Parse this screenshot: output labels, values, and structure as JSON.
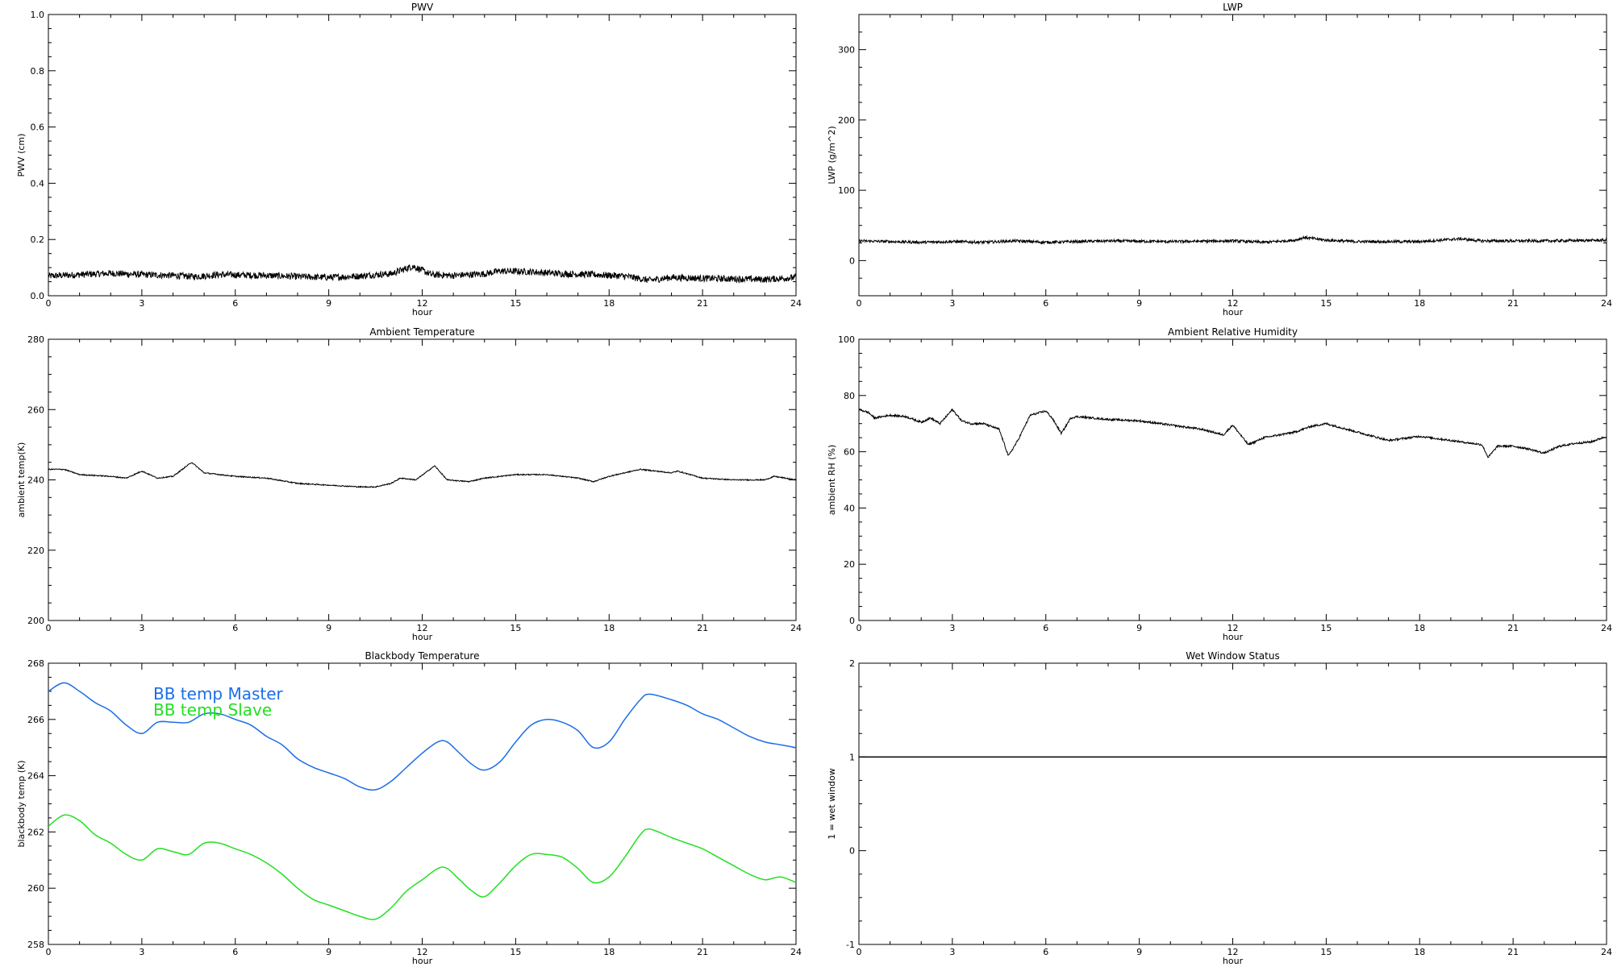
{
  "chart_data": [
    {
      "id": "pwv",
      "type": "line",
      "title": "PWV",
      "xlabel": "hour",
      "ylabel": "PWV (cm)",
      "xlim": [
        0,
        24
      ],
      "ylim": [
        0,
        1.0
      ],
      "xticks": [
        0,
        3,
        6,
        9,
        12,
        15,
        18,
        21,
        24
      ],
      "xtick_labels": [
        "0",
        "3",
        "6",
        "9",
        "12",
        "15",
        "18",
        "21",
        "24"
      ],
      "yticks": [
        0,
        0.2,
        0.4,
        0.6,
        0.8,
        1.0
      ],
      "ytick_labels": [
        "0.0",
        "0.2",
        "0.4",
        "0.6",
        "0.8",
        "1.0"
      ],
      "noise": 0.012,
      "series": [
        {
          "color": "#000000",
          "x": [
            0,
            1,
            2,
            3,
            4,
            4.7,
            5.5,
            7,
            8,
            9,
            10,
            10.5,
            11,
            11.7,
            12.3,
            13,
            14,
            14.5,
            15.5,
            16.5,
            17.5,
            18.5,
            19.3,
            20,
            21,
            22,
            23,
            24
          ],
          "y": [
            0.07,
            0.075,
            0.08,
            0.075,
            0.072,
            0.068,
            0.075,
            0.072,
            0.068,
            0.065,
            0.07,
            0.075,
            0.078,
            0.105,
            0.075,
            0.072,
            0.078,
            0.088,
            0.085,
            0.078,
            0.075,
            0.07,
            0.055,
            0.065,
            0.062,
            0.06,
            0.058,
            0.065
          ]
        }
      ]
    },
    {
      "id": "lwp",
      "type": "line",
      "title": "LWP",
      "xlabel": "hour",
      "ylabel": "LWP (g/m^2)",
      "xlim": [
        0,
        24
      ],
      "ylim": [
        -50,
        350
      ],
      "xticks": [
        0,
        3,
        6,
        9,
        12,
        15,
        18,
        21,
        24
      ],
      "xtick_labels": [
        "0",
        "3",
        "6",
        "9",
        "12",
        "15",
        "18",
        "21",
        "24"
      ],
      "yticks": [
        0,
        100,
        200,
        300
      ],
      "ytick_labels": [
        "0",
        "100",
        "200",
        "300"
      ],
      "noise": 2.0,
      "series": [
        {
          "color": "#000000",
          "x": [
            0,
            1,
            2,
            3,
            4,
            5,
            6,
            8,
            10,
            12,
            13,
            14,
            14.3,
            15,
            16,
            18,
            19.3,
            20,
            22,
            24
          ],
          "y": [
            28,
            27,
            26,
            27,
            26,
            28,
            26,
            28,
            27,
            28,
            26,
            29,
            33,
            29,
            27,
            27,
            31,
            28,
            28,
            29
          ]
        }
      ]
    },
    {
      "id": "ambient-temp",
      "type": "line",
      "title": "Ambient Temperature",
      "xlabel": "hour",
      "ylabel": "ambient temp(K)",
      "xlim": [
        0,
        24
      ],
      "ylim": [
        200,
        280
      ],
      "xticks": [
        0,
        3,
        6,
        9,
        12,
        15,
        18,
        21,
        24
      ],
      "xtick_labels": [
        "0",
        "3",
        "6",
        "9",
        "12",
        "15",
        "18",
        "21",
        "24"
      ],
      "yticks": [
        200,
        220,
        240,
        260,
        280
      ],
      "ytick_labels": [
        "200",
        "220",
        "240",
        "260",
        "280"
      ],
      "noise": 0.15,
      "series": [
        {
          "color": "#000000",
          "x": [
            0,
            0.5,
            1,
            2,
            2.5,
            3,
            3.5,
            4,
            4.6,
            5,
            6,
            7,
            8,
            9,
            10,
            10.5,
            11,
            11.3,
            11.8,
            12.4,
            12.8,
            13.5,
            14,
            15,
            16,
            17,
            17.5,
            18,
            19,
            20,
            20.2,
            21,
            22,
            23,
            23.3,
            24
          ],
          "y": [
            243,
            243,
            241.5,
            241,
            240.5,
            242.5,
            240.5,
            241,
            245,
            242,
            241,
            240.5,
            239,
            238.5,
            238,
            238,
            239,
            240.5,
            240,
            244,
            240,
            239.5,
            240.5,
            241.5,
            241.5,
            240.5,
            239.5,
            241,
            243,
            242,
            242.5,
            240.5,
            240,
            240,
            241,
            240
          ]
        }
      ]
    },
    {
      "id": "ambient-rh",
      "type": "line",
      "title": "Ambient Relative Humidity",
      "xlabel": "hour",
      "ylabel": "ambient RH (%)",
      "xlim": [
        0,
        24
      ],
      "ylim": [
        0,
        100
      ],
      "xticks": [
        0,
        3,
        6,
        9,
        12,
        15,
        18,
        21,
        24
      ],
      "xtick_labels": [
        "0",
        "3",
        "6",
        "9",
        "12",
        "15",
        "18",
        "21",
        "24"
      ],
      "yticks": [
        0,
        20,
        40,
        60,
        80,
        100
      ],
      "ytick_labels": [
        "0",
        "20",
        "40",
        "60",
        "80",
        "100"
      ],
      "noise": 0.35,
      "series": [
        {
          "color": "#000000",
          "x": [
            0,
            0.3,
            0.5,
            1,
            1.5,
            2,
            2.3,
            2.6,
            3,
            3.3,
            3.6,
            4,
            4.5,
            4.8,
            5.1,
            5.5,
            6,
            6.2,
            6.5,
            6.8,
            7,
            8,
            9,
            10,
            11,
            11.7,
            12,
            12.5,
            12.8,
            13,
            13.5,
            14,
            14.5,
            15,
            16,
            17,
            18,
            19,
            20,
            20.2,
            20.5,
            21,
            21.5,
            22,
            22.5,
            23,
            23.5,
            24
          ],
          "y": [
            75,
            74,
            72,
            73,
            72.5,
            70.5,
            72,
            70,
            75,
            71,
            70,
            70,
            68,
            58.5,
            64,
            73,
            74.5,
            72,
            66.5,
            72,
            72.5,
            71.5,
            71,
            69.5,
            68,
            66,
            69.5,
            62.5,
            64,
            65,
            66,
            67,
            69,
            70,
            67,
            64,
            65.5,
            64,
            62.5,
            58,
            62,
            62,
            61,
            59.5,
            62,
            63,
            63.5,
            65.5
          ]
        }
      ]
    },
    {
      "id": "blackbody-temp",
      "type": "line",
      "title": "Blackbody Temperature",
      "xlabel": "hour",
      "ylabel": "blackbody temp (K)",
      "xlim": [
        0,
        24
      ],
      "ylim": [
        258,
        268
      ],
      "xticks": [
        0,
        3,
        6,
        9,
        12,
        15,
        18,
        21,
        24
      ],
      "xtick_labels": [
        "0",
        "3",
        "6",
        "9",
        "12",
        "15",
        "18",
        "21",
        "24"
      ],
      "yticks": [
        258,
        260,
        262,
        264,
        266,
        268
      ],
      "ytick_labels": [
        "258",
        "260",
        "262",
        "264",
        "266",
        "268"
      ],
      "noise": 0.0,
      "legend": {
        "placement": "top-left",
        "entries": [
          "BB temp Master",
          "BB temp Slave"
        ]
      },
      "series": [
        {
          "name": "BB temp Master",
          "color": "#1a6ee6",
          "x": [
            0,
            0.5,
            1,
            1.5,
            2,
            2.5,
            3,
            3.5,
            4,
            4.5,
            5,
            5.5,
            6,
            6.5,
            7,
            7.5,
            8,
            8.5,
            9,
            9.5,
            10,
            10.5,
            11,
            11.5,
            12,
            12.5,
            12.8,
            13.2,
            13.6,
            14,
            14.5,
            15,
            15.5,
            16,
            16.5,
            17,
            17.5,
            18,
            18.5,
            19,
            19.3,
            20,
            20.5,
            21,
            21.5,
            22,
            22.5,
            23,
            23.5,
            24
          ],
          "y": [
            267.0,
            267.3,
            267.0,
            266.6,
            266.3,
            265.8,
            265.5,
            265.9,
            265.9,
            265.9,
            266.2,
            266.2,
            266.0,
            265.8,
            265.4,
            265.1,
            264.6,
            264.3,
            264.1,
            263.9,
            263.6,
            263.5,
            263.8,
            264.3,
            264.8,
            265.2,
            265.2,
            264.8,
            264.4,
            264.2,
            264.5,
            265.2,
            265.8,
            266.0,
            265.9,
            265.6,
            265.0,
            265.2,
            266.0,
            266.7,
            266.9,
            266.7,
            266.5,
            266.2,
            266.0,
            265.7,
            265.4,
            265.2,
            265.1,
            265.0
          ]
        },
        {
          "name": "BB temp Slave",
          "color": "#22e022",
          "x": [
            0,
            0.5,
            1,
            1.5,
            2,
            2.5,
            3,
            3.5,
            4,
            4.5,
            5,
            5.5,
            6,
            6.5,
            7,
            7.5,
            8,
            8.5,
            9,
            9.5,
            10,
            10.5,
            11,
            11.5,
            12,
            12.5,
            12.8,
            13.2,
            13.6,
            14,
            14.5,
            15,
            15.5,
            16,
            16.5,
            17,
            17.5,
            18,
            18.5,
            19,
            19.3,
            20,
            20.5,
            21,
            21.5,
            22,
            22.5,
            23,
            23.5,
            24
          ],
          "y": [
            262.2,
            262.6,
            262.4,
            261.9,
            261.6,
            261.2,
            261.0,
            261.4,
            261.3,
            261.2,
            261.6,
            261.6,
            261.4,
            261.2,
            260.9,
            260.5,
            260.0,
            259.6,
            259.4,
            259.2,
            259.0,
            258.9,
            259.3,
            259.9,
            260.3,
            260.7,
            260.7,
            260.3,
            259.9,
            259.7,
            260.2,
            260.8,
            261.2,
            261.2,
            261.1,
            260.7,
            260.2,
            260.4,
            261.1,
            261.9,
            262.1,
            261.8,
            261.6,
            261.4,
            261.1,
            260.8,
            260.5,
            260.3,
            260.4,
            260.2
          ]
        }
      ]
    },
    {
      "id": "wet-window",
      "type": "line",
      "title": "Wet Window Status",
      "xlabel": "hour",
      "ylabel": "1 = wet window",
      "xlim": [
        0,
        24
      ],
      "ylim": [
        -1,
        2
      ],
      "xticks": [
        0,
        3,
        6,
        9,
        12,
        15,
        18,
        21,
        24
      ],
      "xtick_labels": [
        "0",
        "3",
        "6",
        "9",
        "12",
        "15",
        "18",
        "21",
        "24"
      ],
      "yticks": [
        -1,
        0,
        1,
        2
      ],
      "ytick_labels": [
        "-1",
        "0",
        "1",
        "2"
      ],
      "noise": 0.0,
      "series": [
        {
          "color": "#000000",
          "x": [
            0,
            24
          ],
          "y": [
            1,
            1
          ]
        }
      ]
    }
  ]
}
